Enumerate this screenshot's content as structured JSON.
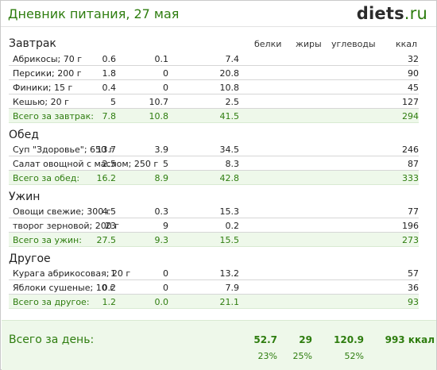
{
  "header": {
    "title": "Дневник питания, 27 мая",
    "logo_main": "diets",
    "logo_tld": ".ru"
  },
  "columns": {
    "protein": "белки",
    "fat": "жиры",
    "carbs": "углеводы",
    "kcal": "ккал"
  },
  "sections": [
    {
      "title": "Завтрак",
      "items": [
        {
          "name": "Абрикосы; 70 г",
          "protein": "0.6",
          "fat": "0.1",
          "carbs": "7.4",
          "kcal": "32"
        },
        {
          "name": "Персики; 200 г",
          "protein": "1.8",
          "fat": "0",
          "carbs": "20.8",
          "kcal": "90"
        },
        {
          "name": "Финики; 15 г",
          "protein": "0.4",
          "fat": "0",
          "carbs": "10.8",
          "kcal": "45"
        },
        {
          "name": "Кешью; 20 г",
          "protein": "5",
          "fat": "10.7",
          "carbs": "2.5",
          "kcal": "127"
        }
      ],
      "total": {
        "name": "Всего за завтрак:",
        "protein": "7.8",
        "fat": "10.8",
        "carbs": "41.5",
        "kcal": "294"
      }
    },
    {
      "title": "Обед",
      "items": [
        {
          "name": "Суп \"Здоровье\"; 650 г",
          "protein": "13.7",
          "fat": "3.9",
          "carbs": "34.5",
          "kcal": "246"
        },
        {
          "name": "Салат овощной с маслом; 250 г",
          "protein": "2.5",
          "fat": "5",
          "carbs": "8.3",
          "kcal": "87"
        }
      ],
      "total": {
        "name": "Всего за обед:",
        "protein": "16.2",
        "fat": "8.9",
        "carbs": "42.8",
        "kcal": "333"
      }
    },
    {
      "title": "Ужин",
      "items": [
        {
          "name": "Овощи свежие; 300 г",
          "protein": "4.5",
          "fat": "0.3",
          "carbs": "15.3",
          "kcal": "77"
        },
        {
          "name": "творог зерновой; 200 г",
          "protein": "23",
          "fat": "9",
          "carbs": "0.2",
          "kcal": "196"
        }
      ],
      "total": {
        "name": "Всего за ужин:",
        "protein": "27.5",
        "fat": "9.3",
        "carbs": "15.5",
        "kcal": "273"
      }
    },
    {
      "title": "Другое",
      "items": [
        {
          "name": "Курага абрикосовая; 20 г",
          "protein": "1",
          "fat": "0",
          "carbs": "13.2",
          "kcal": "57"
        },
        {
          "name": "Яблоки сушеные; 10 г",
          "protein": "0.2",
          "fat": "0",
          "carbs": "7.9",
          "kcal": "36"
        }
      ],
      "total": {
        "name": "Всего за другое:",
        "protein": "1.2",
        "fat": "0.0",
        "carbs": "21.1",
        "kcal": "93"
      }
    }
  ],
  "day": {
    "label": "Всего за день:",
    "protein": "52.7",
    "fat": "29",
    "carbs": "120.9",
    "kcal": "993 ккал",
    "protein_pct": "23%",
    "fat_pct": "25%",
    "carbs_pct": "52%"
  }
}
